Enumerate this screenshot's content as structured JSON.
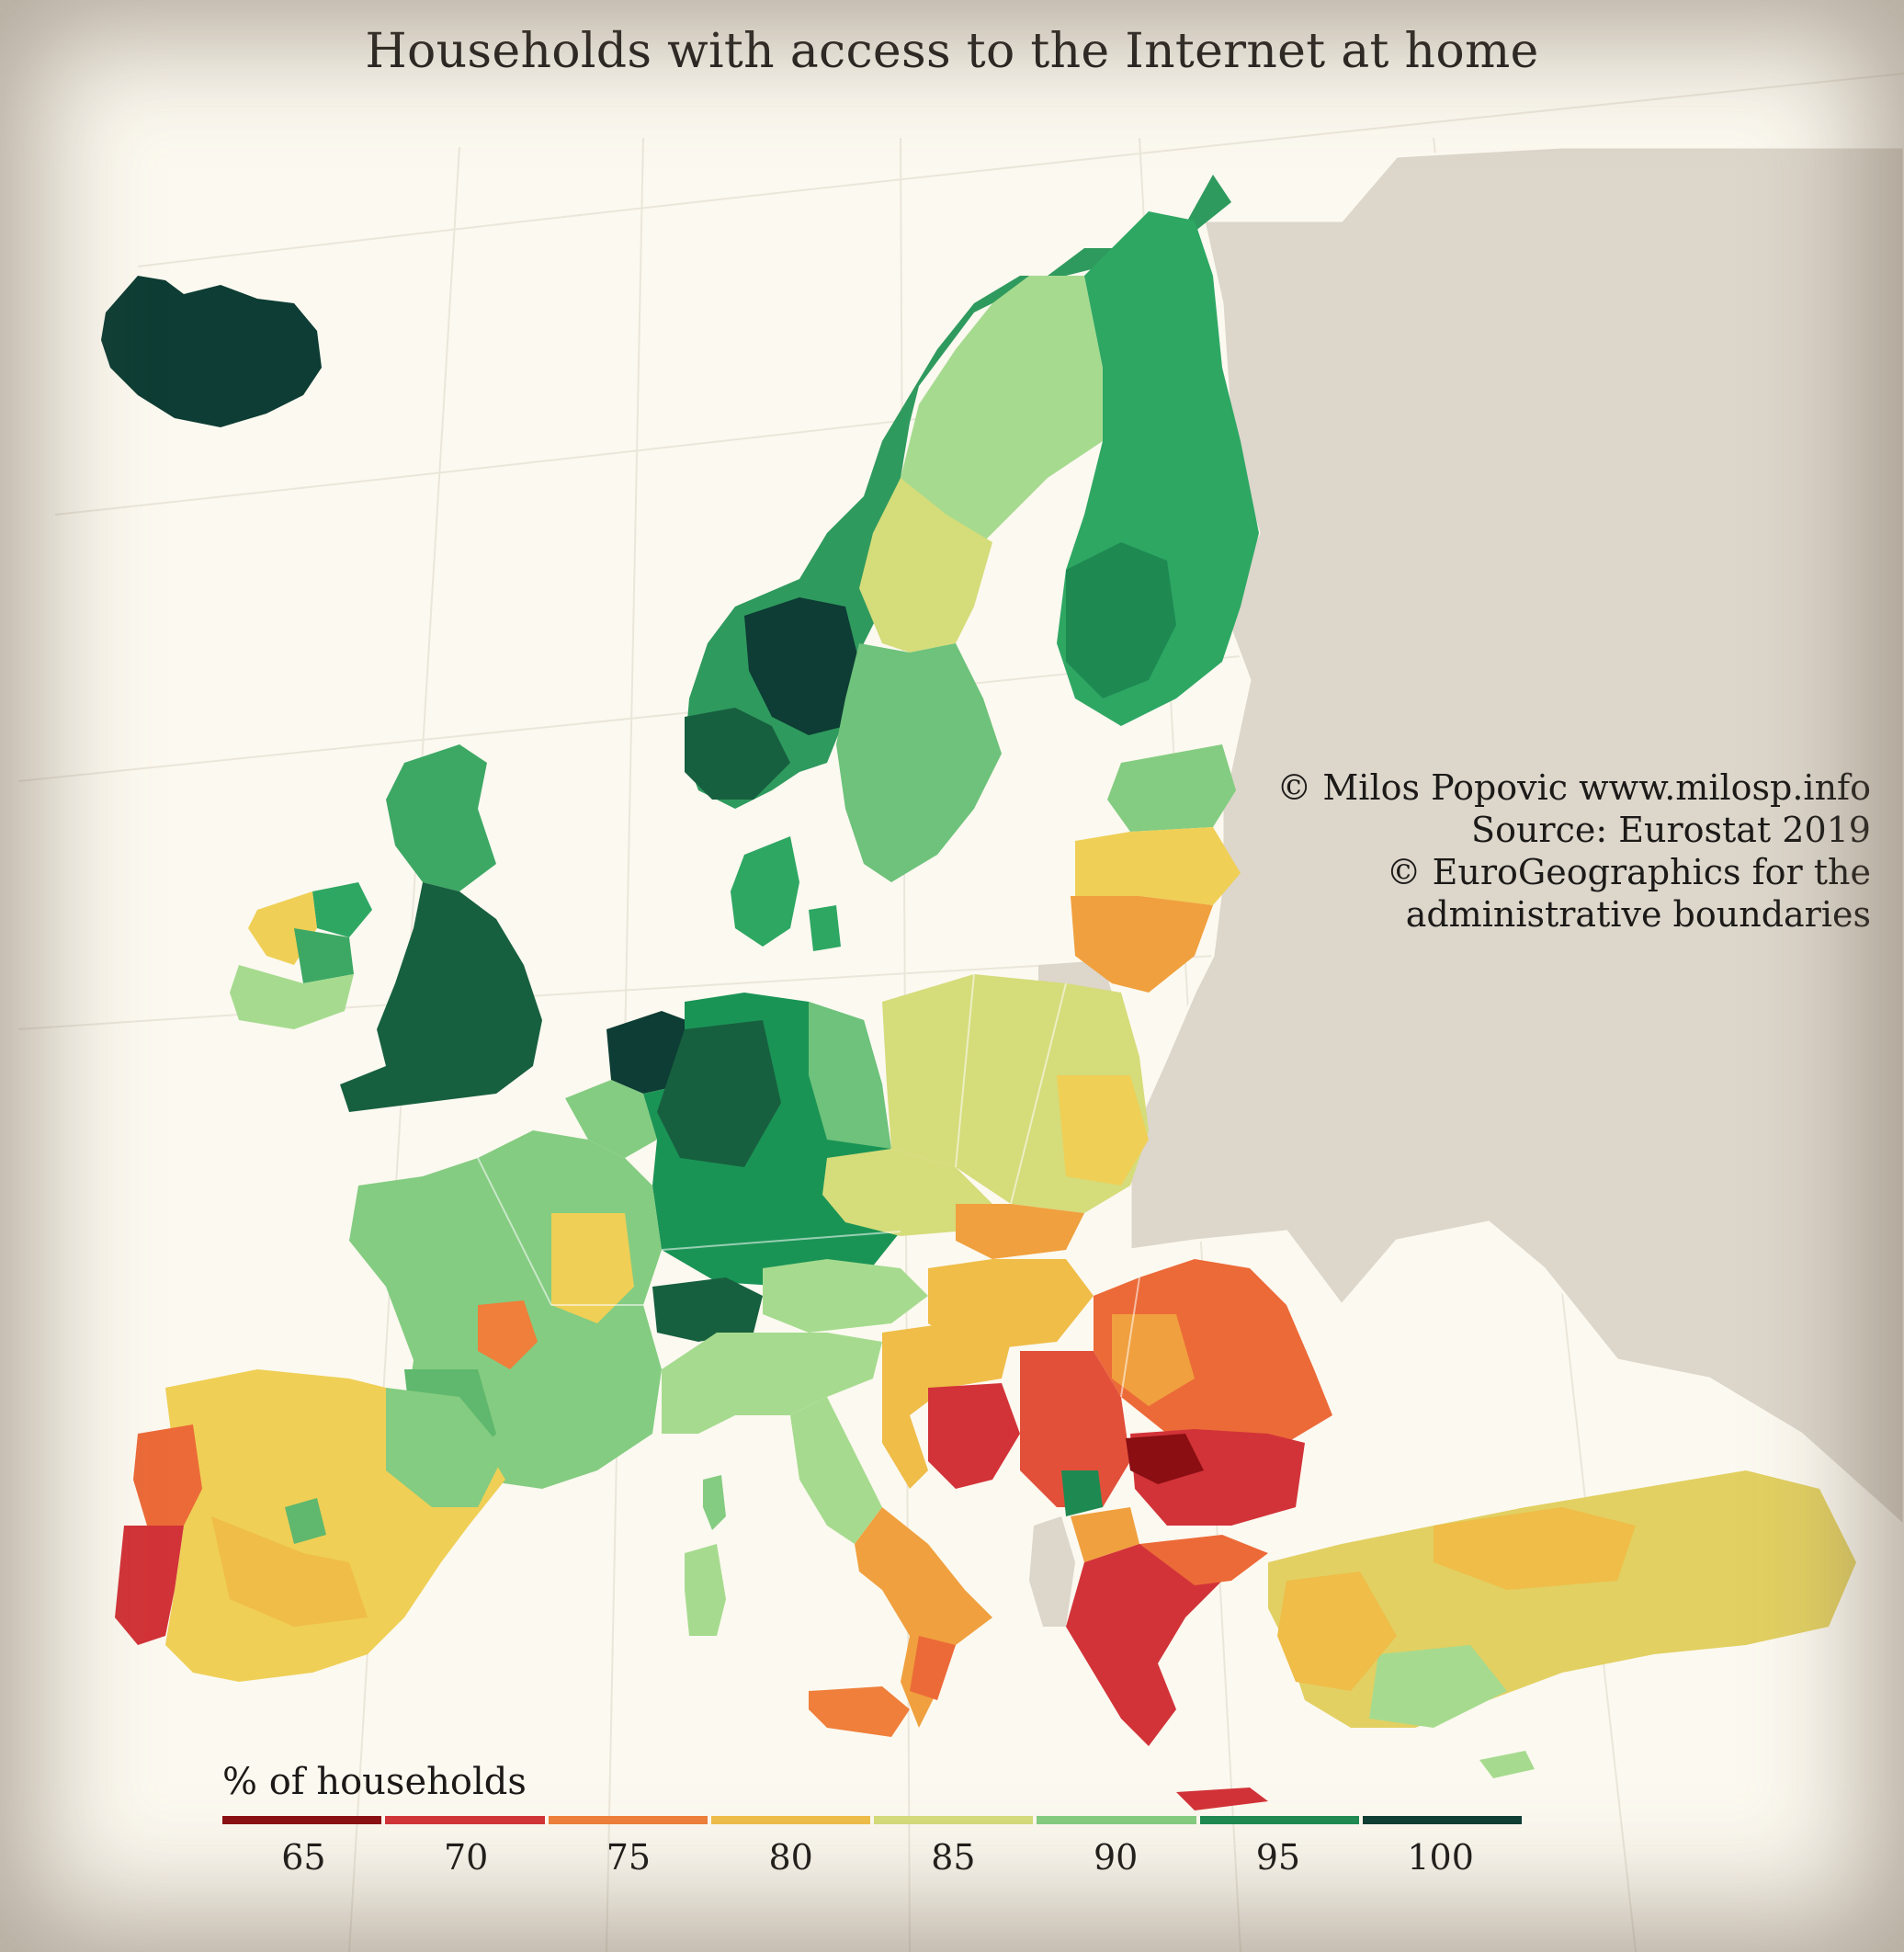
{
  "title": "Households with access to the Internet at home",
  "credits": [
    "© Milos Popovic www.milosp.info",
    "Source: Eurostat 2019",
    "© EuroGeographics for the",
    "administrative boundaries"
  ],
  "legend": {
    "title": "% of households",
    "ticks": [
      "65",
      "70",
      "75",
      "80",
      "85",
      "90",
      "95",
      "100"
    ],
    "colors": [
      "#8a0e12",
      "#d23338",
      "#ef7f3a",
      "#efbd48",
      "#d5dc7a",
      "#84cc81",
      "#1e8a52",
      "#0d3d34"
    ]
  },
  "colors": {
    "background": "#fcf9f0",
    "non_data_land": "#dcd6cb",
    "graticule": "#ebe6da"
  },
  "regions": [
    {
      "name": "Iceland",
      "value": 99
    },
    {
      "name": "Norway",
      "value": 96
    },
    {
      "name": "Sweden",
      "value": 93
    },
    {
      "name": "Finland",
      "value": 94
    },
    {
      "name": "Denmark",
      "value": 95
    },
    {
      "name": "Netherlands",
      "value": 98
    },
    {
      "name": "United Kingdom",
      "value": 96
    },
    {
      "name": "Ireland",
      "value": 91
    },
    {
      "name": "Germany",
      "value": 95
    },
    {
      "name": "Switzerland",
      "value": 96
    },
    {
      "name": "France",
      "value": 90
    },
    {
      "name": "Belgium",
      "value": 90
    },
    {
      "name": "Spain",
      "value": 81
    },
    {
      "name": "Portugal",
      "value": 75
    },
    {
      "name": "Italy",
      "value": 88
    },
    {
      "name": "Poland",
      "value": 85
    },
    {
      "name": "Czechia",
      "value": 85
    },
    {
      "name": "Austria",
      "value": 89
    },
    {
      "name": "Hungary",
      "value": 80
    },
    {
      "name": "Romania",
      "value": 77
    },
    {
      "name": "Bulgaria",
      "value": 70
    },
    {
      "name": "Greece",
      "value": 73
    },
    {
      "name": "Turkey",
      "value": 84
    },
    {
      "name": "Estonia",
      "value": 90
    },
    {
      "name": "Latvia",
      "value": 81
    },
    {
      "name": "Lithuania",
      "value": 78
    },
    {
      "name": "Serbia",
      "value": 74
    },
    {
      "name": "Bosnia and Herzegovina",
      "value": 70
    },
    {
      "name": "Croatia",
      "value": 80
    },
    {
      "name": "North Macedonia",
      "value": 79
    },
    {
      "name": "Kosovo",
      "value": 93
    },
    {
      "name": "Cyprus",
      "value": 88
    }
  ]
}
